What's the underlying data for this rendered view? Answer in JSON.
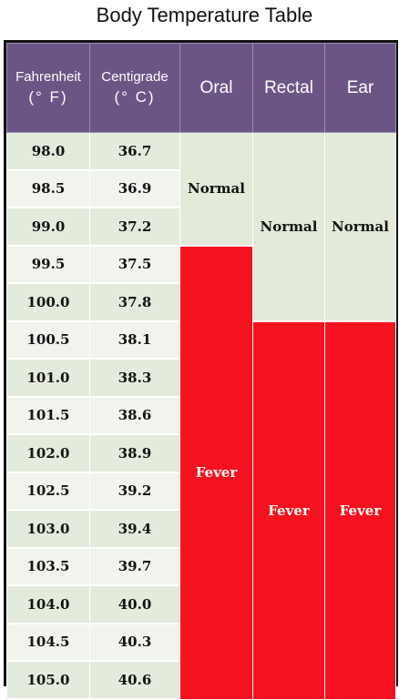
{
  "title": "Body Temperature Table",
  "headers": {
    "fahrenheit_line1": "Fahrenheit",
    "fahrenheit_line2": "(° F)",
    "centigrade_line1": "Centigrade",
    "centigrade_line2": "(° C)",
    "oral": "Oral",
    "rectal": "Rectal",
    "ear": "Ear"
  },
  "rows": [
    {
      "f": "98.0",
      "c": "36.7"
    },
    {
      "f": "98.5",
      "c": "36.9"
    },
    {
      "f": "99.0",
      "c": "37.2"
    },
    {
      "f": "99.5",
      "c": "37.5"
    },
    {
      "f": "100.0",
      "c": "37.8"
    },
    {
      "f": "100.5",
      "c": "38.1"
    },
    {
      "f": "101.0",
      "c": "38.3"
    },
    {
      "f": "101.5",
      "c": "38.6"
    },
    {
      "f": "102.0",
      "c": "38.9"
    },
    {
      "f": "102.5",
      "c": "39.2"
    },
    {
      "f": "103.0",
      "c": "39.4"
    },
    {
      "f": "103.5",
      "c": "39.7"
    },
    {
      "f": "104.0",
      "c": "40.0"
    },
    {
      "f": "104.5",
      "c": "40.3"
    },
    {
      "f": "105.0",
      "c": "40.6"
    }
  ],
  "ranges": {
    "oral_normal": "Normal",
    "oral_fever": "Fever",
    "rectal_normal": "Normal",
    "rectal_fever": "Fever",
    "ear_normal": "Normal",
    "ear_fever": "Fever"
  },
  "colors": {
    "header_bg": "#6b5585",
    "normal_bg": "#e2ead9",
    "fever_bg": "#f5111d"
  }
}
